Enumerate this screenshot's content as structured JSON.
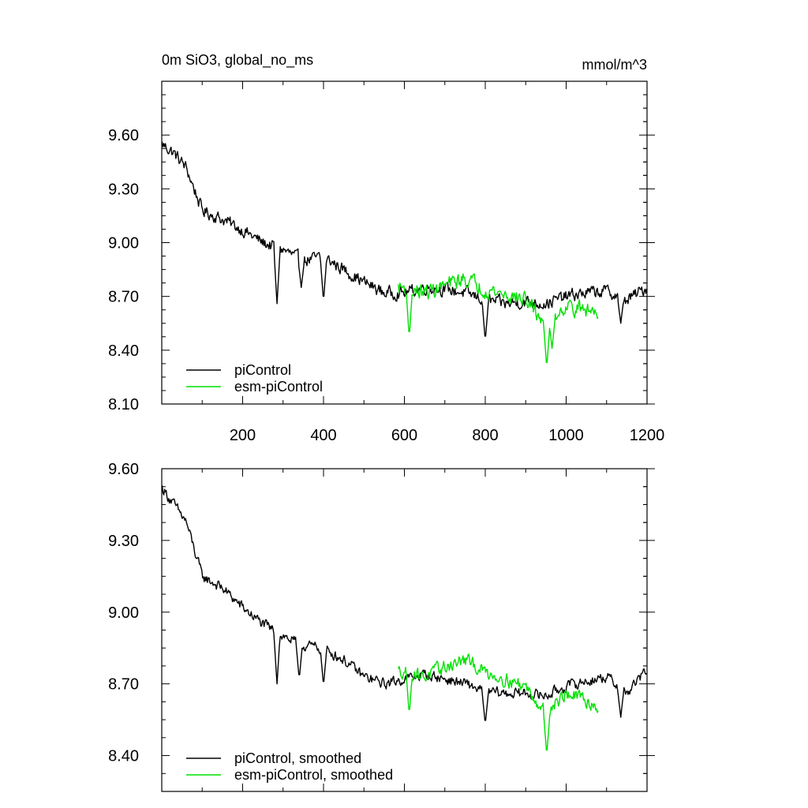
{
  "colors": {
    "series_a": "#000000",
    "series_b": "#00e000",
    "axis": "#000000",
    "background": "#ffffff"
  },
  "panel_top": {
    "title_left": "0m SiO3, global_no_ms",
    "title_right": "mmol/m^3",
    "legend": [
      "piControl",
      "esm-piControl"
    ]
  },
  "panel_bottom": {
    "legend": [
      "piControl, smoothed",
      "esm-piControl, smoothed"
    ]
  },
  "chart_data": [
    {
      "type": "line",
      "title": "0m SiO3, global_no_ms",
      "units": "mmol/m^3",
      "xlim": [
        0,
        1200
      ],
      "ylim": [
        8.1,
        9.9
      ],
      "x_ticks": [
        200,
        400,
        600,
        800,
        1000,
        1200
      ],
      "x_tick_labels": [
        "200",
        "400",
        "600",
        "800",
        "1000",
        "1200"
      ],
      "y_ticks": [
        8.1,
        8.4,
        8.7,
        9.0,
        9.3,
        9.6
      ],
      "y_tick_labels": [
        "8.10",
        "8.40",
        "8.70",
        "9.00",
        "9.30",
        "9.60"
      ],
      "series": [
        {
          "name": "piControl",
          "color": "#000000",
          "x_start": 1,
          "x_end": 1200,
          "noise": 0.055,
          "trend_anchors": [
            [
              1,
              9.55
            ],
            [
              30,
              9.5
            ],
            [
              60,
              9.42
            ],
            [
              100,
              9.18
            ],
            [
              150,
              9.13
            ],
            [
              200,
              9.07
            ],
            [
              250,
              9.0
            ],
            [
              300,
              8.96
            ],
            [
              350,
              8.9
            ],
            [
              400,
              8.92
            ],
            [
              450,
              8.85
            ],
            [
              500,
              8.78
            ],
            [
              550,
              8.72
            ],
            [
              600,
              8.72
            ],
            [
              650,
              8.75
            ],
            [
              700,
              8.74
            ],
            [
              750,
              8.72
            ],
            [
              800,
              8.68
            ],
            [
              850,
              8.66
            ],
            [
              900,
              8.67
            ],
            [
              950,
              8.66
            ],
            [
              1000,
              8.7
            ],
            [
              1050,
              8.72
            ],
            [
              1100,
              8.73
            ],
            [
              1150,
              8.68
            ],
            [
              1200,
              8.75
            ]
          ],
          "dips": [
            [
              285,
              8.66
            ],
            [
              345,
              8.75
            ],
            [
              400,
              8.67
            ],
            [
              800,
              8.45
            ],
            [
              1135,
              8.55
            ]
          ]
        },
        {
          "name": "esm-piControl",
          "color": "#00e000",
          "x_start": 585,
          "x_end": 1080,
          "noise": 0.07,
          "trend_anchors": [
            [
              585,
              8.75
            ],
            [
              600,
              8.75
            ],
            [
              650,
              8.72
            ],
            [
              700,
              8.76
            ],
            [
              750,
              8.8
            ],
            [
              800,
              8.74
            ],
            [
              850,
              8.71
            ],
            [
              900,
              8.68
            ],
            [
              950,
              8.55
            ],
            [
              1000,
              8.65
            ],
            [
              1050,
              8.62
            ],
            [
              1080,
              8.62
            ]
          ],
          "dips": [
            [
              612,
              8.47
            ],
            [
              952,
              8.3
            ],
            [
              965,
              8.41
            ]
          ]
        }
      ]
    },
    {
      "type": "line",
      "title": "",
      "xlim": [
        0,
        1200
      ],
      "ylim": [
        8.25,
        9.6
      ],
      "x_ticks": [
        200,
        400,
        600,
        800,
        1000,
        1200
      ],
      "x_tick_labels": [],
      "y_ticks": [
        8.4,
        8.7,
        9.0,
        9.3,
        9.6
      ],
      "y_tick_labels": [
        "8.40",
        "8.70",
        "9.00",
        "9.30",
        "9.60"
      ],
      "series": [
        {
          "name": "piControl, smoothed",
          "color": "#000000",
          "x_start": 1,
          "x_end": 1200,
          "noise": 0.035,
          "trend_anchors": [
            [
              1,
              9.52
            ],
            [
              30,
              9.45
            ],
            [
              60,
              9.38
            ],
            [
              100,
              9.15
            ],
            [
              150,
              9.1
            ],
            [
              200,
              9.02
            ],
            [
              250,
              8.95
            ],
            [
              300,
              8.9
            ],
            [
              350,
              8.86
            ],
            [
              400,
              8.85
            ],
            [
              450,
              8.8
            ],
            [
              500,
              8.73
            ],
            [
              550,
              8.7
            ],
            [
              600,
              8.72
            ],
            [
              650,
              8.74
            ],
            [
              700,
              8.72
            ],
            [
              750,
              8.7
            ],
            [
              800,
              8.67
            ],
            [
              850,
              8.66
            ],
            [
              900,
              8.66
            ],
            [
              950,
              8.65
            ],
            [
              1000,
              8.69
            ],
            [
              1050,
              8.71
            ],
            [
              1100,
              8.73
            ],
            [
              1150,
              8.66
            ],
            [
              1200,
              8.76
            ]
          ],
          "dips": [
            [
              285,
              8.7
            ],
            [
              340,
              8.72
            ],
            [
              400,
              8.69
            ],
            [
              800,
              8.53
            ],
            [
              1135,
              8.56
            ]
          ]
        },
        {
          "name": "esm-piControl, smoothed",
          "color": "#00e000",
          "x_start": 585,
          "x_end": 1080,
          "noise": 0.045,
          "trend_anchors": [
            [
              585,
              8.75
            ],
            [
              600,
              8.76
            ],
            [
              650,
              8.73
            ],
            [
              700,
              8.77
            ],
            [
              750,
              8.8
            ],
            [
              800,
              8.75
            ],
            [
              850,
              8.72
            ],
            [
              900,
              8.69
            ],
            [
              950,
              8.58
            ],
            [
              1000,
              8.66
            ],
            [
              1050,
              8.63
            ],
            [
              1080,
              8.6
            ]
          ],
          "dips": [
            [
              612,
              8.57
            ],
            [
              952,
              8.4
            ]
          ]
        }
      ]
    }
  ]
}
